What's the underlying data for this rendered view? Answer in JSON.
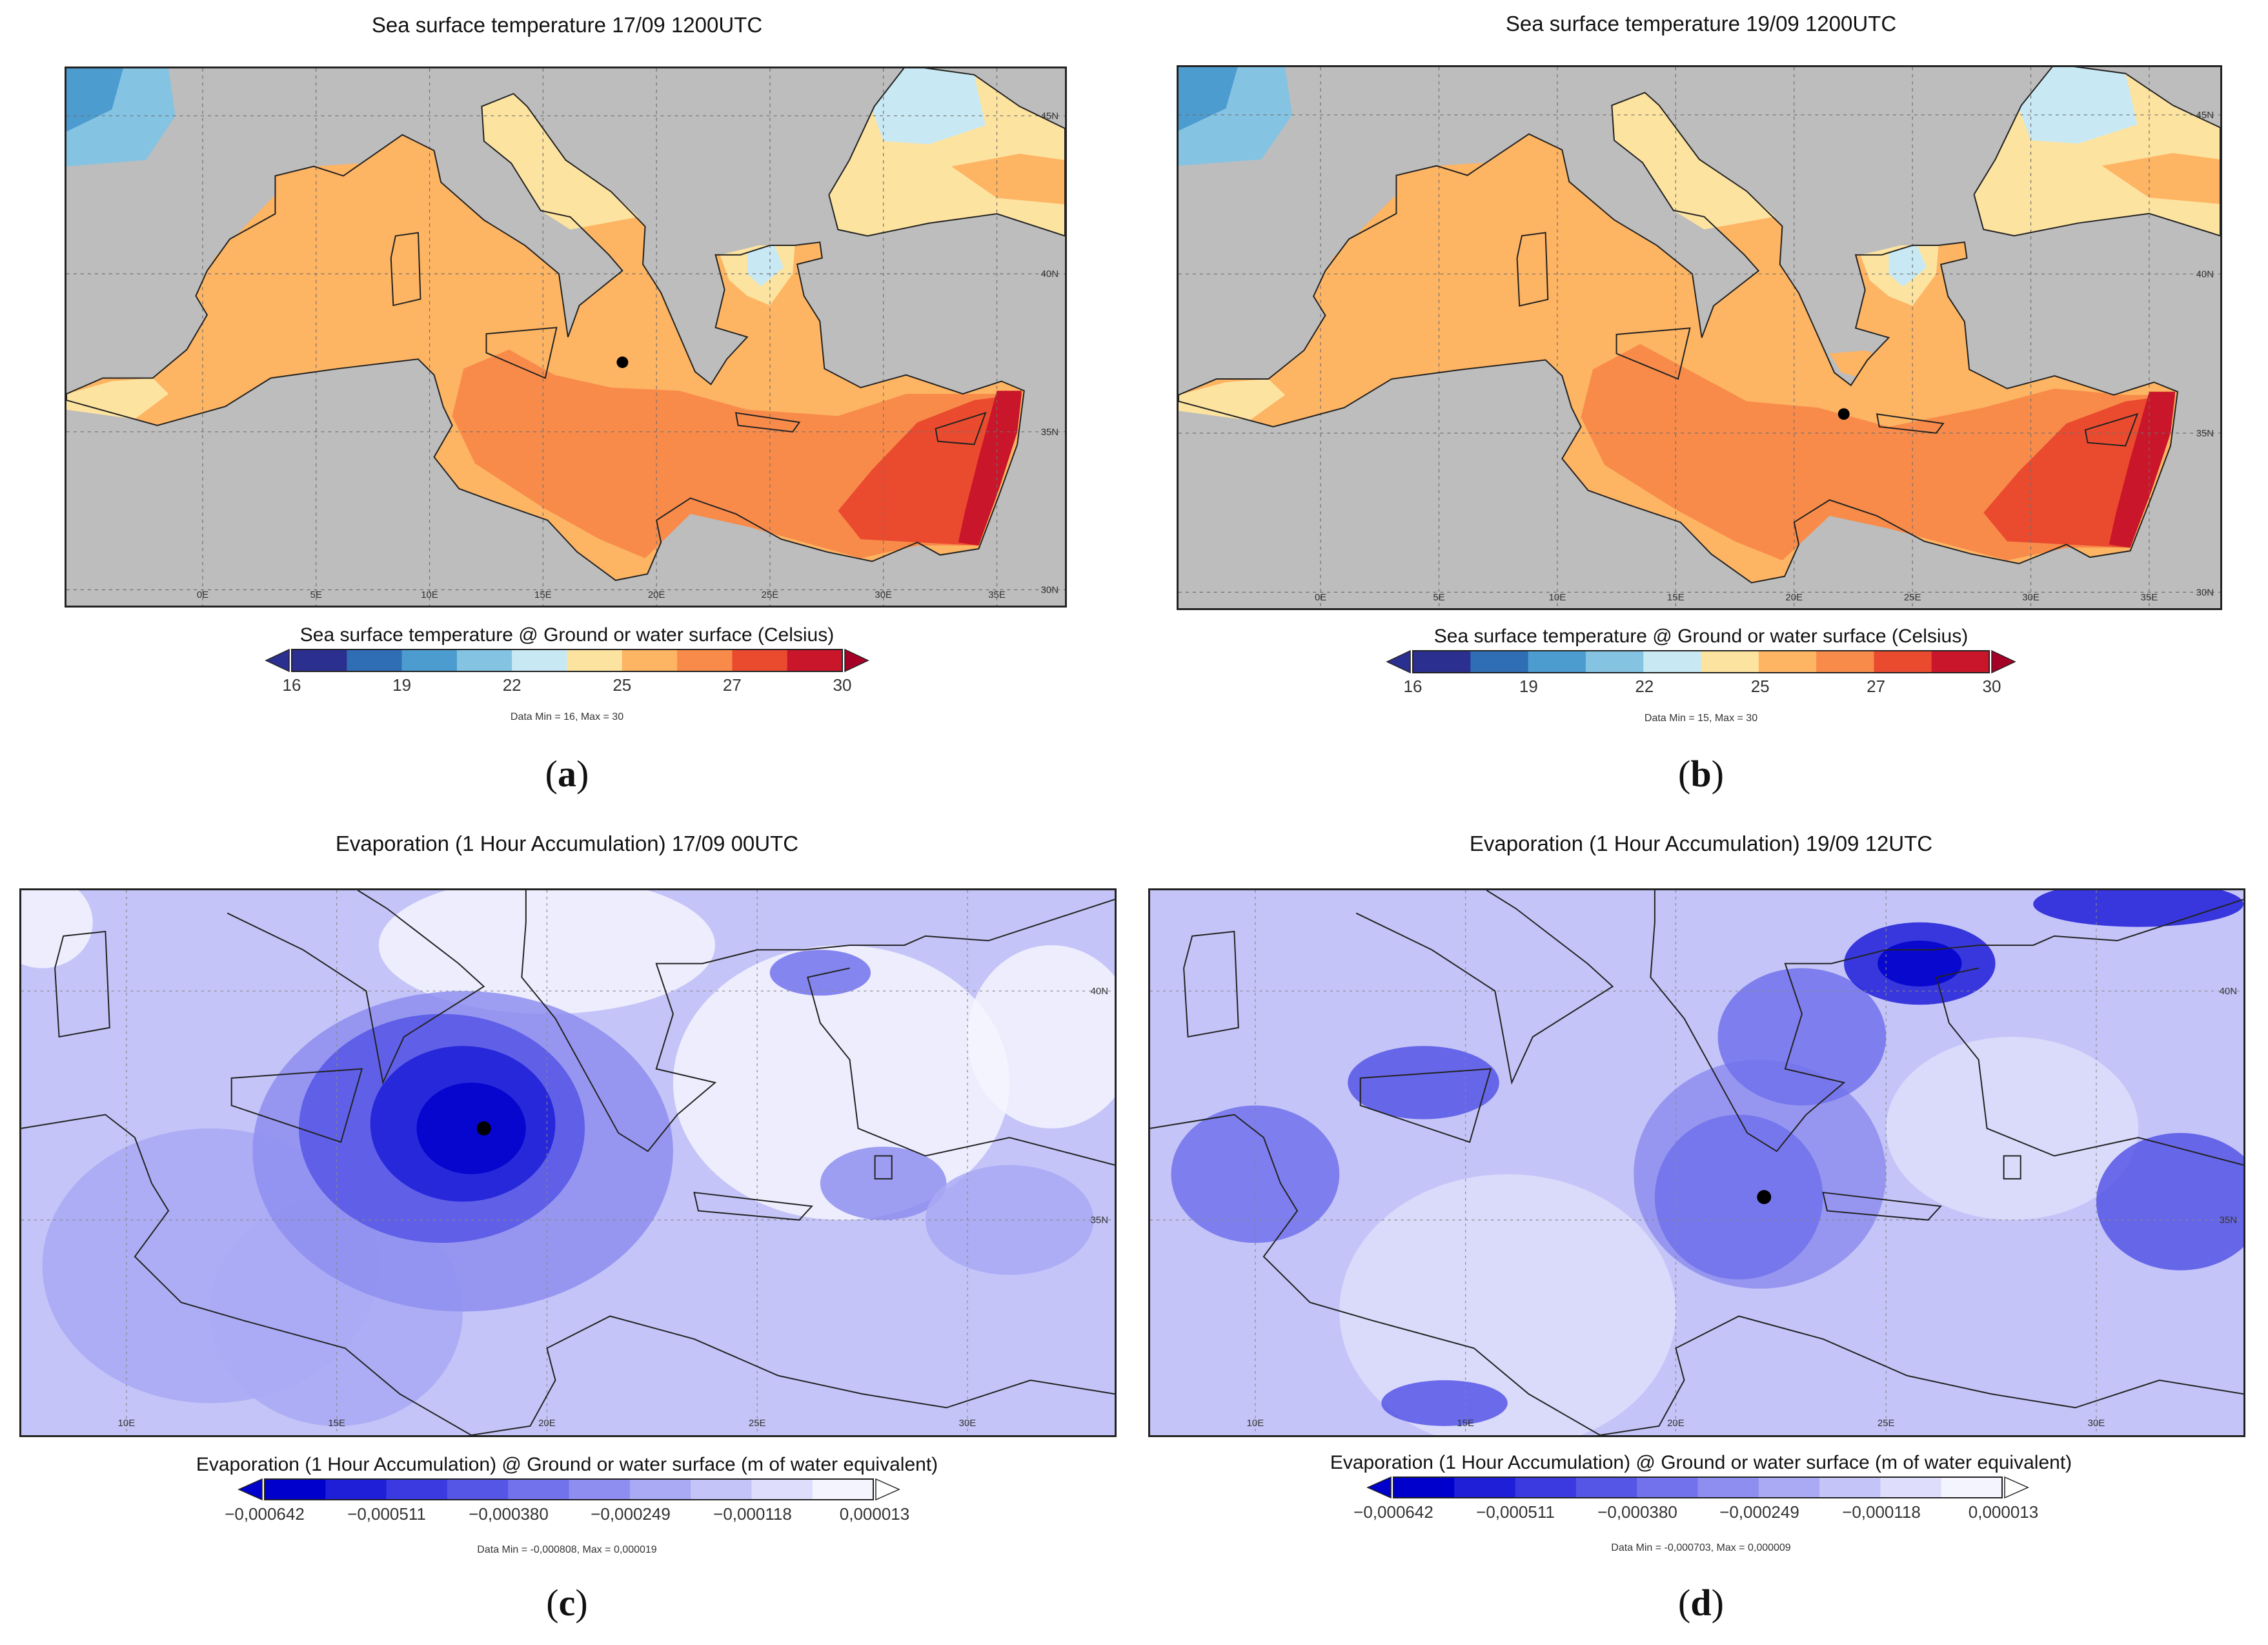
{
  "panels": {
    "a": {
      "title": "Sea surface temperature 17/09 1200UTC",
      "colorbar_title": "Sea surface temperature @ Ground or water surface (Celsius)",
      "colorbar_ticks": [
        "16",
        "19",
        "22",
        "25",
        "27",
        "30"
      ],
      "data_minmax": "Data Min = 16, Max = 30",
      "label_open": "(",
      "label_letter": "a",
      "label_close": ")",
      "lon_labels": [
        "0E",
        "5E",
        "10E",
        "15E",
        "20E",
        "25E",
        "30E",
        "35E"
      ],
      "lat_labels": [
        "45N",
        "40N",
        "35N",
        "30N"
      ],
      "marker": {
        "lon": 18.5,
        "lat": 37.2
      }
    },
    "b": {
      "title": "Sea surface temperature 19/09 1200UTC",
      "colorbar_title": "Sea surface temperature @ Ground or water surface (Celsius)",
      "colorbar_ticks": [
        "16",
        "19",
        "22",
        "25",
        "27",
        "30"
      ],
      "data_minmax": "Data Min = 15, Max = 30",
      "label_open": "(",
      "label_letter": "b",
      "label_close": ")",
      "lon_labels": [
        "0E",
        "5E",
        "10E",
        "15E",
        "20E",
        "25E",
        "30E",
        "35E"
      ],
      "lat_labels": [
        "45N",
        "40N",
        "35N",
        "30N"
      ],
      "marker": {
        "lon": 22.1,
        "lat": 35.6
      }
    },
    "c": {
      "title": "Evaporation (1 Hour Accumulation) 17/09 00UTC",
      "colorbar_title": "Evaporation (1 Hour Accumulation) @ Ground or water surface (m of water equivalent)",
      "colorbar_ticks": [
        "−0,000642",
        "−0,000511",
        "−0,000380",
        "−0,000249",
        "−0,000118",
        "0,000013"
      ],
      "data_minmax": "Data Min = -0,000808, Max = 0,000019",
      "label_open": "(",
      "label_letter": "c",
      "label_close": ")",
      "lon_labels": [
        "10E",
        "15E",
        "20E",
        "25E",
        "30E"
      ],
      "lat_labels": [
        "40N",
        "35N"
      ],
      "marker": {
        "lon": 18.5,
        "lat": 37.0
      }
    },
    "d": {
      "title": "Evaporation (1 Hour Accumulation) 19/09 12UTC",
      "colorbar_title": "Evaporation (1 Hour Accumulation) @ Ground or water surface (m of water equivalent)",
      "colorbar_ticks": [
        "−0,000642",
        "−0,000511",
        "−0,000380",
        "−0,000249",
        "−0,000118",
        "0,000013"
      ],
      "data_minmax": "Data Min = -0,000703, Max = 0,000009",
      "label_open": "(",
      "label_letter": "d",
      "label_close": ")",
      "lon_labels": [
        "10E",
        "15E",
        "20E",
        "25E",
        "30E"
      ],
      "lat_labels": [
        "40N",
        "35N"
      ],
      "marker": {
        "lon": 22.1,
        "lat": 35.5
      }
    }
  },
  "palettes": {
    "sst": [
      "#2b2f8f",
      "#2f6db5",
      "#4c9cd0",
      "#85c3e3",
      "#c8e9f4",
      "#fde3a0",
      "#fdb463",
      "#f88b4a",
      "#ea4b2f",
      "#c9162a",
      "#a50026"
    ],
    "evap": [
      "#0000cc",
      "#1f1fd8",
      "#3a3ae0",
      "#5656e6",
      "#7272ec",
      "#8e8ef0",
      "#a9a9f4",
      "#c4c4f8",
      "#dedefc",
      "#f4f4ff"
    ],
    "land_gray": "#bdbdbd",
    "coast": "#222222"
  }
}
